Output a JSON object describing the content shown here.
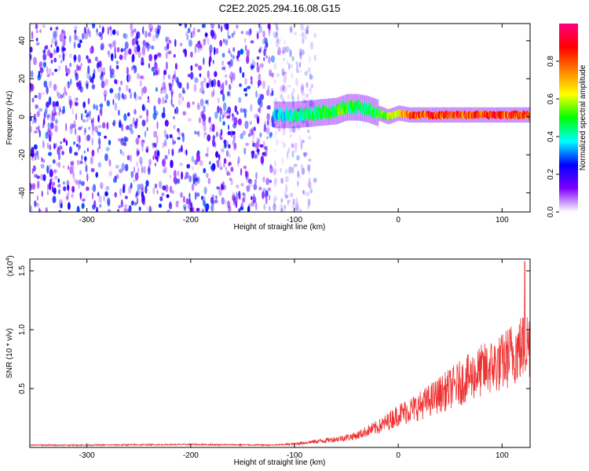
{
  "title": "C2E2.2025.294.16.08.G15",
  "chart_data": [
    {
      "type": "heatmap",
      "title": "C2E2.2025.294.16.08.G15",
      "xlabel": "Height of straight line (km)",
      "ylabel": "Frequency (Hz)",
      "xlim": [
        -355,
        127
      ],
      "ylim": [
        -50,
        49
      ],
      "xticks": [
        -300,
        -200,
        -100,
        0,
        100
      ],
      "xtick_labels": [
        "-300",
        "-200",
        "-100",
        "0",
        "100"
      ],
      "yticks": [
        -40,
        -20,
        0,
        20,
        40
      ],
      "ytick_labels": [
        "-40",
        "-20",
        "0",
        "20",
        "40"
      ],
      "colorbar": {
        "label": "Normalized spectral amplitude",
        "range": [
          0,
          1
        ],
        "ticks": [
          0.0,
          0.2,
          0.4,
          0.6,
          0.8
        ],
        "tick_labels": [
          "0.0",
          "0.2",
          "0.4",
          "0.6",
          "0.8"
        ],
        "colors": [
          "#ffffff",
          "#7f00ff",
          "#0000ff",
          "#00ffff",
          "#00ff00",
          "#ffff00",
          "#ff8000",
          "#ff0000",
          "#ff0080"
        ]
      },
      "noise_region_x": [
        -355,
        -95
      ],
      "noise_amplitude": [
        0.05,
        0.3
      ],
      "signal_track": {
        "x": [
          -120,
          -100,
          -80,
          -60,
          -50,
          -40,
          -30,
          -20,
          -10,
          0,
          10,
          20,
          40,
          60,
          80,
          100,
          127
        ],
        "freq_hz": [
          1,
          1,
          2,
          3,
          5,
          5,
          4,
          2,
          0,
          2,
          1,
          1,
          1,
          1,
          1,
          1,
          1
        ],
        "amplitude": [
          0.4,
          0.45,
          0.5,
          0.55,
          0.55,
          0.5,
          0.5,
          0.55,
          0.6,
          0.75,
          0.85,
          0.9,
          0.9,
          0.9,
          0.92,
          0.92,
          0.9
        ]
      }
    },
    {
      "type": "line",
      "xlabel": "Height of straight line (km)",
      "ylabel": "SNR (10 * v/v)",
      "y_scale_label": "(x10",
      "y_scale_exp": "4",
      "y_scale_close": ")",
      "xlim": [
        -355,
        127
      ],
      "ylim": [
        0,
        1.6
      ],
      "xticks": [
        -300,
        -200,
        -100,
        0,
        100
      ],
      "xtick_labels": [
        "-300",
        "-200",
        "-100",
        "0",
        "100"
      ],
      "yticks": [
        0.5,
        1.0,
        1.5
      ],
      "ytick_labels": [
        "0.5",
        "1.0",
        "1.5"
      ],
      "series": [
        {
          "name": "SNR",
          "color": "#ee3333",
          "x": [
            -355,
            -300,
            -200,
            -120,
            -100,
            -80,
            -60,
            -40,
            -30,
            -20,
            -10,
            0,
            20,
            40,
            60,
            80,
            100,
            110,
            120,
            127
          ],
          "y": [
            0.02,
            0.02,
            0.025,
            0.02,
            0.03,
            0.05,
            0.07,
            0.1,
            0.14,
            0.17,
            0.22,
            0.28,
            0.35,
            0.45,
            0.55,
            0.65,
            0.72,
            0.8,
            0.85,
            0.9
          ],
          "peak": {
            "x": 122,
            "y": 1.58
          }
        }
      ]
    }
  ]
}
